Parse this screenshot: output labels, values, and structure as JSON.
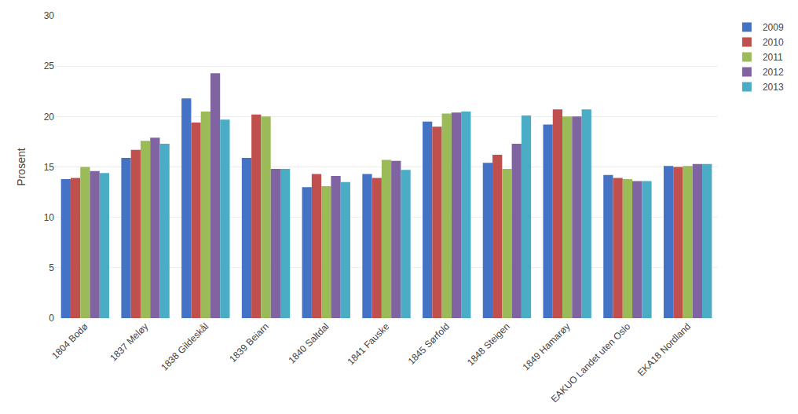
{
  "chart_data": {
    "type": "bar",
    "ylabel": "Prosent",
    "categories": [
      "1804 Bodø",
      "1837 Meløy",
      "1838 Gildeskål",
      "1839 Beiarn",
      "1840 Saltdal",
      "1841 Fauske",
      "1845 Sørfold",
      "1848 Steigen",
      "1849 Hamarøy",
      "EAKUO Landet uten Oslo",
      "EKA18 Nordland"
    ],
    "series": [
      {
        "name": "2009",
        "color": "#4472C4",
        "values": [
          13.8,
          15.9,
          21.8,
          15.9,
          13.0,
          14.3,
          19.5,
          15.4,
          19.2,
          14.2,
          15.1
        ]
      },
      {
        "name": "2010",
        "color": "#C0504D",
        "values": [
          13.9,
          16.7,
          19.4,
          20.2,
          14.3,
          13.9,
          19.0,
          16.2,
          20.7,
          13.9,
          15.0
        ]
      },
      {
        "name": "2011",
        "color": "#9BBB59",
        "values": [
          15.0,
          17.6,
          20.5,
          20.0,
          13.1,
          15.7,
          20.3,
          14.8,
          20.0,
          13.8,
          15.1
        ]
      },
      {
        "name": "2012",
        "color": "#8064A2",
        "values": [
          14.6,
          17.9,
          24.3,
          14.8,
          14.1,
          15.6,
          20.4,
          17.3,
          20.0,
          13.6,
          15.3
        ]
      },
      {
        "name": "2013",
        "color": "#4BACC6",
        "values": [
          14.4,
          17.3,
          19.7,
          14.8,
          13.5,
          14.7,
          20.5,
          20.1,
          20.7,
          13.6,
          15.3
        ]
      }
    ],
    "ylim": [
      0,
      30
    ],
    "yticks": [
      0,
      5,
      10,
      15,
      20,
      25,
      30
    ],
    "grid": true,
    "legend": "upper right"
  }
}
